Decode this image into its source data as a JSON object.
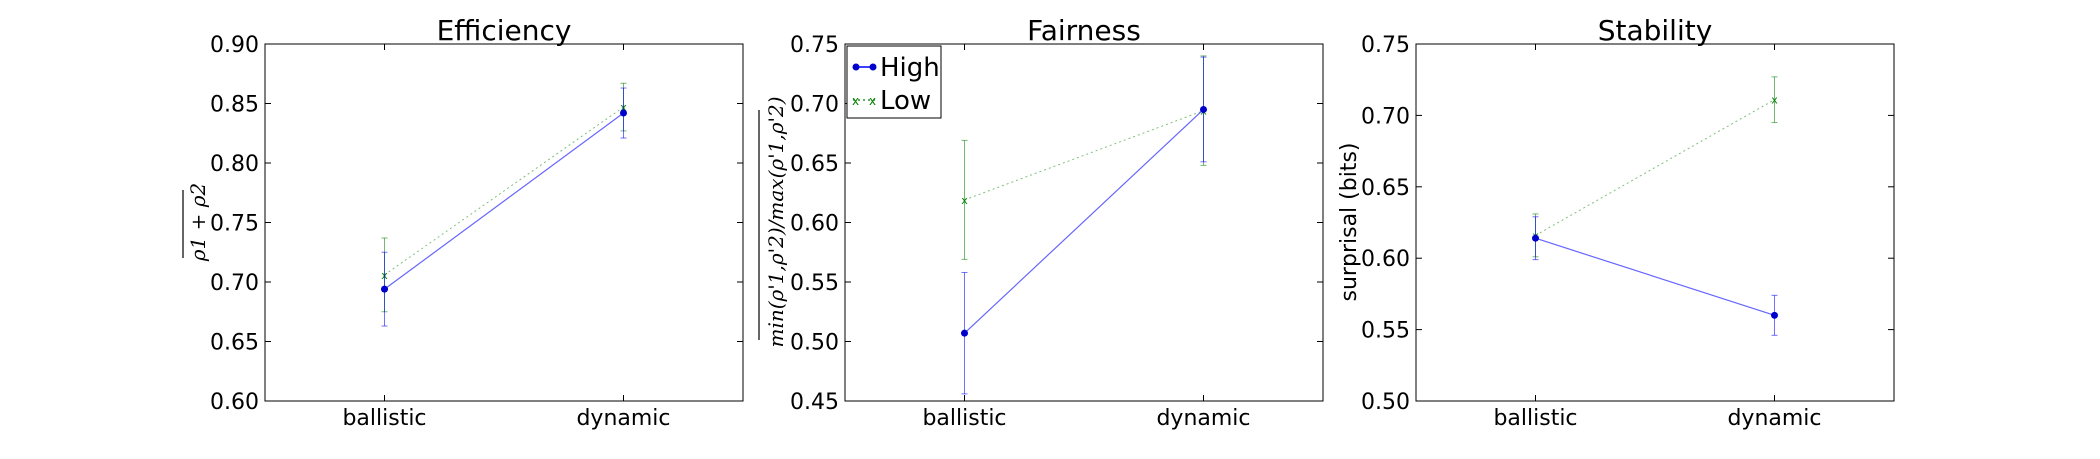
{
  "chart_data": [
    {
      "type": "line",
      "title": "Efficiency",
      "ylabel": "ρ1 + ρ2",
      "categories": [
        "ballistic",
        "dynamic"
      ],
      "ylim": [
        0.6,
        0.9
      ],
      "yticks": [
        "0.60",
        "0.65",
        "0.70",
        "0.75",
        "0.80",
        "0.85",
        "0.90"
      ],
      "series": [
        {
          "name": "High",
          "values": [
            0.694,
            0.842
          ],
          "err": [
            0.031,
            0.021
          ],
          "color": "#0000ff"
        },
        {
          "name": "Low",
          "values": [
            0.706,
            0.847
          ],
          "err": [
            0.031,
            0.02
          ],
          "color": "#008000"
        }
      ]
    },
    {
      "type": "line",
      "title": "Fairness",
      "ylabel": "min(ρ'1,ρ'2)/max(ρ'1,ρ'2)",
      "categories": [
        "ballistic",
        "dynamic"
      ],
      "ylim": [
        0.45,
        0.75
      ],
      "yticks": [
        "0.45",
        "0.50",
        "0.55",
        "0.60",
        "0.65",
        "0.70",
        "0.75"
      ],
      "legend": {
        "position": "top-left",
        "entries": [
          "High",
          "Low"
        ]
      },
      "series": [
        {
          "name": "High",
          "values": [
            0.507,
            0.695
          ],
          "err": [
            0.051,
            0.044
          ],
          "color": "#0000ff"
        },
        {
          "name": "Low",
          "values": [
            0.619,
            0.694
          ],
          "err": [
            0.05,
            0.046
          ],
          "color": "#008000"
        }
      ]
    },
    {
      "type": "line",
      "title": "Stability",
      "ylabel": "surprisal (bits)",
      "categories": [
        "ballistic",
        "dynamic"
      ],
      "ylim": [
        0.5,
        0.75
      ],
      "yticks": [
        "0.50",
        "0.55",
        "0.60",
        "0.65",
        "0.70",
        "0.75"
      ],
      "series": [
        {
          "name": "High",
          "values": [
            0.614,
            0.56
          ],
          "err": [
            0.015,
            0.014
          ],
          "color": "#0000ff"
        },
        {
          "name": "Low",
          "values": [
            0.616,
            0.711
          ],
          "err": [
            0.015,
            0.016
          ],
          "color": "#008000"
        }
      ]
    }
  ]
}
